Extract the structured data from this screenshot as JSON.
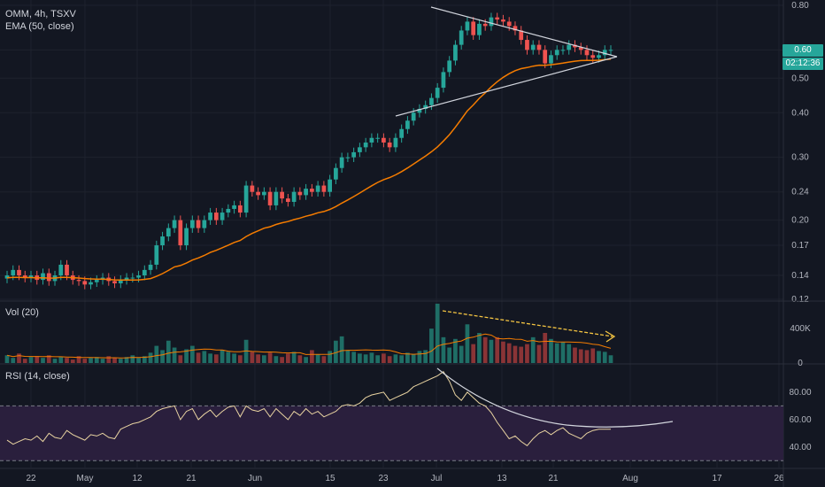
{
  "colors": {
    "bg": "#131722",
    "grid": "#1e222d",
    "up": "#26a69a",
    "down": "#ef5350",
    "ema": "#f57c00",
    "rsi": "#e8d3a1",
    "rsi_band": "#2a1f3d",
    "trend": "#d1d4dc",
    "vol_arrow": "#f5c542",
    "sep": "#2a2e39"
  },
  "header": {
    "symbol": "OMM, 4h, TSXV",
    "ema_label": "EMA (50, close)",
    "vol_label": "Vol (20)",
    "rsi_label": "RSI (14, close)"
  },
  "price_tag": {
    "last": "0.60",
    "countdown": "02:12:36"
  },
  "chart_data": [
    {
      "type": "candlestick",
      "title": "OMM, 4h, TSXV",
      "scale": "log",
      "ylim": [
        0.12,
        0.8
      ],
      "yticks": [
        "0.80",
        "0.60",
        "0.50",
        "0.40",
        "0.30",
        "0.24",
        "0.20",
        "0.17",
        "0.14",
        "0.12"
      ],
      "ytick_values": [
        0.8,
        0.6,
        0.5,
        0.4,
        0.3,
        0.24,
        0.2,
        0.17,
        0.14,
        0.12
      ],
      "xticks": [
        "22",
        "May",
        "12",
        "21",
        "Jun",
        "15",
        "23",
        "Jul",
        "13",
        "21",
        "Aug",
        "17",
        "26"
      ],
      "xtick_dates": [
        "2020-04-22",
        "2020-05-01",
        "2020-05-12",
        "2020-05-21",
        "2020-06-01",
        "2020-06-15",
        "2020-06-23",
        "2020-07-01",
        "2020-07-13",
        "2020-07-21",
        "2020-08-01",
        "2020-08-17",
        "2020-08-26"
      ],
      "closes": [
        0.14,
        0.145,
        0.14,
        0.138,
        0.14,
        0.136,
        0.142,
        0.135,
        0.14,
        0.15,
        0.14,
        0.136,
        0.135,
        0.132,
        0.134,
        0.136,
        0.138,
        0.135,
        0.133,
        0.136,
        0.138,
        0.138,
        0.14,
        0.145,
        0.15,
        0.17,
        0.18,
        0.19,
        0.2,
        0.17,
        0.19,
        0.2,
        0.19,
        0.2,
        0.21,
        0.2,
        0.21,
        0.215,
        0.22,
        0.21,
        0.25,
        0.24,
        0.235,
        0.24,
        0.22,
        0.24,
        0.23,
        0.225,
        0.24,
        0.235,
        0.245,
        0.24,
        0.25,
        0.24,
        0.26,
        0.28,
        0.3,
        0.3,
        0.31,
        0.32,
        0.33,
        0.34,
        0.34,
        0.33,
        0.32,
        0.34,
        0.36,
        0.38,
        0.4,
        0.41,
        0.42,
        0.44,
        0.47,
        0.52,
        0.56,
        0.62,
        0.68,
        0.72,
        0.66,
        0.71,
        0.7,
        0.74,
        0.73,
        0.72,
        0.7,
        0.68,
        0.64,
        0.6,
        0.62,
        0.6,
        0.55,
        0.58,
        0.6,
        0.6,
        0.62,
        0.61,
        0.6,
        0.58,
        0.57,
        0.58,
        0.6,
        0.6
      ],
      "ema_label": "EMA (50, close)"
    },
    {
      "type": "bar",
      "title": "Vol (20)",
      "yticks": [
        "400K",
        "0"
      ],
      "ytick_values": [
        400000,
        0
      ],
      "ylim": [
        0,
        700000
      ],
      "volumes": [
        90000,
        60000,
        110000,
        50000,
        70000,
        80000,
        60000,
        90000,
        50000,
        70000,
        60000,
        40000,
        80000,
        50000,
        60000,
        70000,
        50000,
        80000,
        60000,
        50000,
        70000,
        90000,
        60000,
        80000,
        120000,
        200000,
        150000,
        260000,
        180000,
        90000,
        160000,
        200000,
        120000,
        140000,
        110000,
        100000,
        150000,
        130000,
        110000,
        90000,
        270000,
        130000,
        100000,
        90000,
        120000,
        80000,
        70000,
        110000,
        130000,
        90000,
        70000,
        150000,
        100000,
        80000,
        140000,
        260000,
        310000,
        150000,
        130000,
        110000,
        100000,
        120000,
        90000,
        110000,
        80000,
        100000,
        90000,
        120000,
        100000,
        140000,
        150000,
        400000,
        690000,
        300000,
        180000,
        280000,
        200000,
        450000,
        220000,
        350000,
        300000,
        270000,
        300000,
        250000,
        230000,
        200000,
        190000,
        220000,
        300000,
        210000,
        350000,
        280000,
        230000,
        240000,
        220000,
        180000,
        160000,
        150000,
        170000,
        140000,
        130000,
        90000
      ]
    },
    {
      "type": "line",
      "title": "RSI (14, close)",
      "yticks": [
        "80.00",
        "60.00",
        "40.00"
      ],
      "ytick_values": [
        80,
        60,
        40
      ],
      "ylim": [
        25,
        100
      ],
      "bands": [
        30,
        70
      ],
      "rsi": [
        45,
        42,
        44,
        46,
        45,
        48,
        44,
        50,
        47,
        46,
        52,
        49,
        47,
        45,
        49,
        48,
        50,
        47,
        46,
        53,
        55,
        57,
        58,
        60,
        62,
        66,
        68,
        69,
        70,
        60,
        66,
        68,
        60,
        64,
        67,
        62,
        66,
        69,
        70,
        62,
        70,
        67,
        66,
        68,
        62,
        68,
        64,
        60,
        66,
        63,
        68,
        64,
        66,
        62,
        64,
        66,
        70,
        71,
        70,
        72,
        76,
        78,
        79,
        80,
        74,
        76,
        78,
        80,
        84,
        86,
        88,
        90,
        92,
        95,
        88,
        78,
        74,
        80,
        76,
        72,
        70,
        65,
        58,
        52,
        46,
        48,
        44,
        41,
        46,
        50,
        52,
        49,
        52,
        54,
        50,
        48,
        46,
        50,
        52,
        53,
        53,
        53
      ]
    }
  ]
}
